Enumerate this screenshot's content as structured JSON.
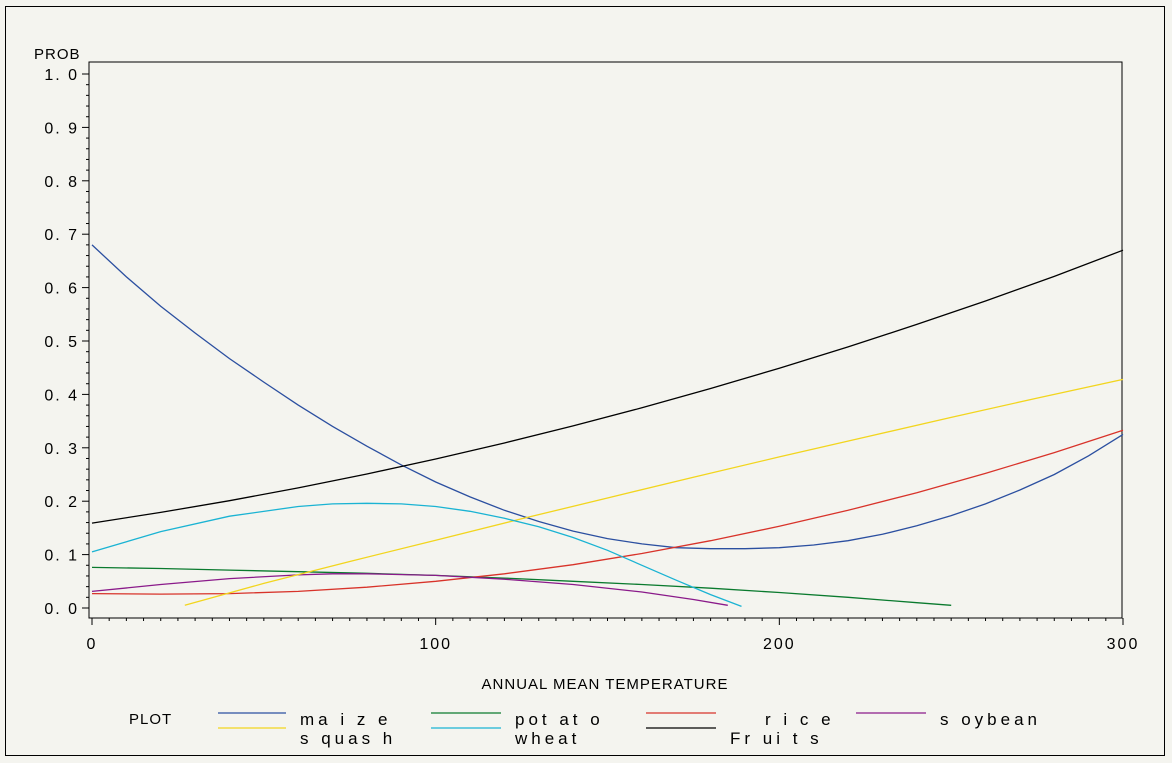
{
  "chart_data": {
    "type": "line",
    "title": "",
    "xlabel": "ANNUAL MEAN TEMPERATURE",
    "ylabel": "PROB",
    "xlim": [
      0,
      300
    ],
    "ylim": [
      0,
      1.0
    ],
    "x_ticks": [
      0,
      100,
      200,
      300
    ],
    "x_tick_labels": [
      "0",
      "100",
      "200",
      "300"
    ],
    "y_ticks": [
      0,
      0.1,
      0.2,
      0.3,
      0.4,
      0.5,
      0.6,
      0.7,
      0.8,
      0.9,
      1.0
    ],
    "y_tick_labels": [
      "0. 0",
      "0. 1",
      "0. 2",
      "0. 3",
      "0. 4",
      "0. 5",
      "0. 6",
      "0. 7",
      "0. 8",
      "0. 9",
      "1. 0"
    ],
    "grid": false,
    "legend": {
      "title": "PLOT",
      "position": "bottom",
      "labels": [
        "ma i z e",
        "pot at o",
        "r i c e",
        "s oybean",
        "s quas h",
        "wheat",
        "Fr ui t s"
      ]
    },
    "series": [
      {
        "name": "maize",
        "color": "#2b4fa0",
        "x": [
          0,
          10,
          20,
          30,
          40,
          50,
          60,
          70,
          80,
          90,
          100,
          110,
          120,
          130,
          140,
          150,
          160,
          170,
          180,
          190,
          200,
          210,
          220,
          230,
          240,
          250,
          260,
          270,
          280,
          290,
          300
        ],
        "y": [
          0.68,
          0.62,
          0.565,
          0.515,
          0.467,
          0.423,
          0.38,
          0.34,
          0.303,
          0.268,
          0.236,
          0.208,
          0.183,
          0.162,
          0.144,
          0.13,
          0.12,
          0.113,
          0.111,
          0.111,
          0.113,
          0.118,
          0.126,
          0.138,
          0.154,
          0.173,
          0.195,
          0.221,
          0.25,
          0.285,
          0.325
        ]
      },
      {
        "name": "potato",
        "color": "#0a7a2e",
        "x": [
          0,
          20,
          40,
          60,
          80,
          100,
          120,
          140,
          160,
          180,
          200,
          220,
          240,
          250
        ],
        "y": [
          0.076,
          0.074,
          0.071,
          0.068,
          0.065,
          0.061,
          0.056,
          0.05,
          0.044,
          0.037,
          0.029,
          0.02,
          0.01,
          0.005
        ]
      },
      {
        "name": "rice",
        "color": "#d8332a",
        "x": [
          0,
          20,
          40,
          60,
          80,
          100,
          120,
          140,
          160,
          180,
          200,
          220,
          240,
          260,
          280,
          300
        ],
        "y": [
          0.027,
          0.026,
          0.027,
          0.031,
          0.039,
          0.05,
          0.064,
          0.081,
          0.102,
          0.126,
          0.153,
          0.183,
          0.216,
          0.252,
          0.291,
          0.333
        ]
      },
      {
        "name": "soybean",
        "color": "#8a1a8a",
        "x": [
          0,
          20,
          40,
          60,
          70,
          80,
          100,
          120,
          140,
          160,
          175,
          185
        ],
        "y": [
          0.031,
          0.044,
          0.055,
          0.062,
          0.064,
          0.064,
          0.061,
          0.054,
          0.044,
          0.03,
          0.016,
          0.005
        ]
      },
      {
        "name": "squash",
        "color": "#f2d51e",
        "x": [
          27,
          50,
          75,
          100,
          125,
          150,
          175,
          200,
          225,
          250,
          275,
          300
        ],
        "y": [
          0.005,
          0.046,
          0.087,
          0.127,
          0.167,
          0.206,
          0.245,
          0.283,
          0.32,
          0.357,
          0.393,
          0.428
        ]
      },
      {
        "name": "wheat",
        "color": "#1ab3d3",
        "x": [
          0,
          20,
          40,
          60,
          70,
          80,
          90,
          100,
          110,
          120,
          130,
          140,
          150,
          160,
          170,
          180,
          189
        ],
        "y": [
          0.105,
          0.143,
          0.172,
          0.19,
          0.195,
          0.196,
          0.195,
          0.19,
          0.181,
          0.168,
          0.152,
          0.132,
          0.108,
          0.08,
          0.052,
          0.025,
          0.003
        ]
      },
      {
        "name": "Fruits",
        "color": "#000000",
        "x": [
          0,
          20,
          40,
          60,
          80,
          100,
          120,
          140,
          160,
          180,
          200,
          220,
          240,
          260,
          280,
          300
        ],
        "y": [
          0.159,
          0.179,
          0.201,
          0.225,
          0.251,
          0.279,
          0.309,
          0.341,
          0.375,
          0.411,
          0.449,
          0.489,
          0.531,
          0.575,
          0.621,
          0.67
        ]
      }
    ]
  }
}
